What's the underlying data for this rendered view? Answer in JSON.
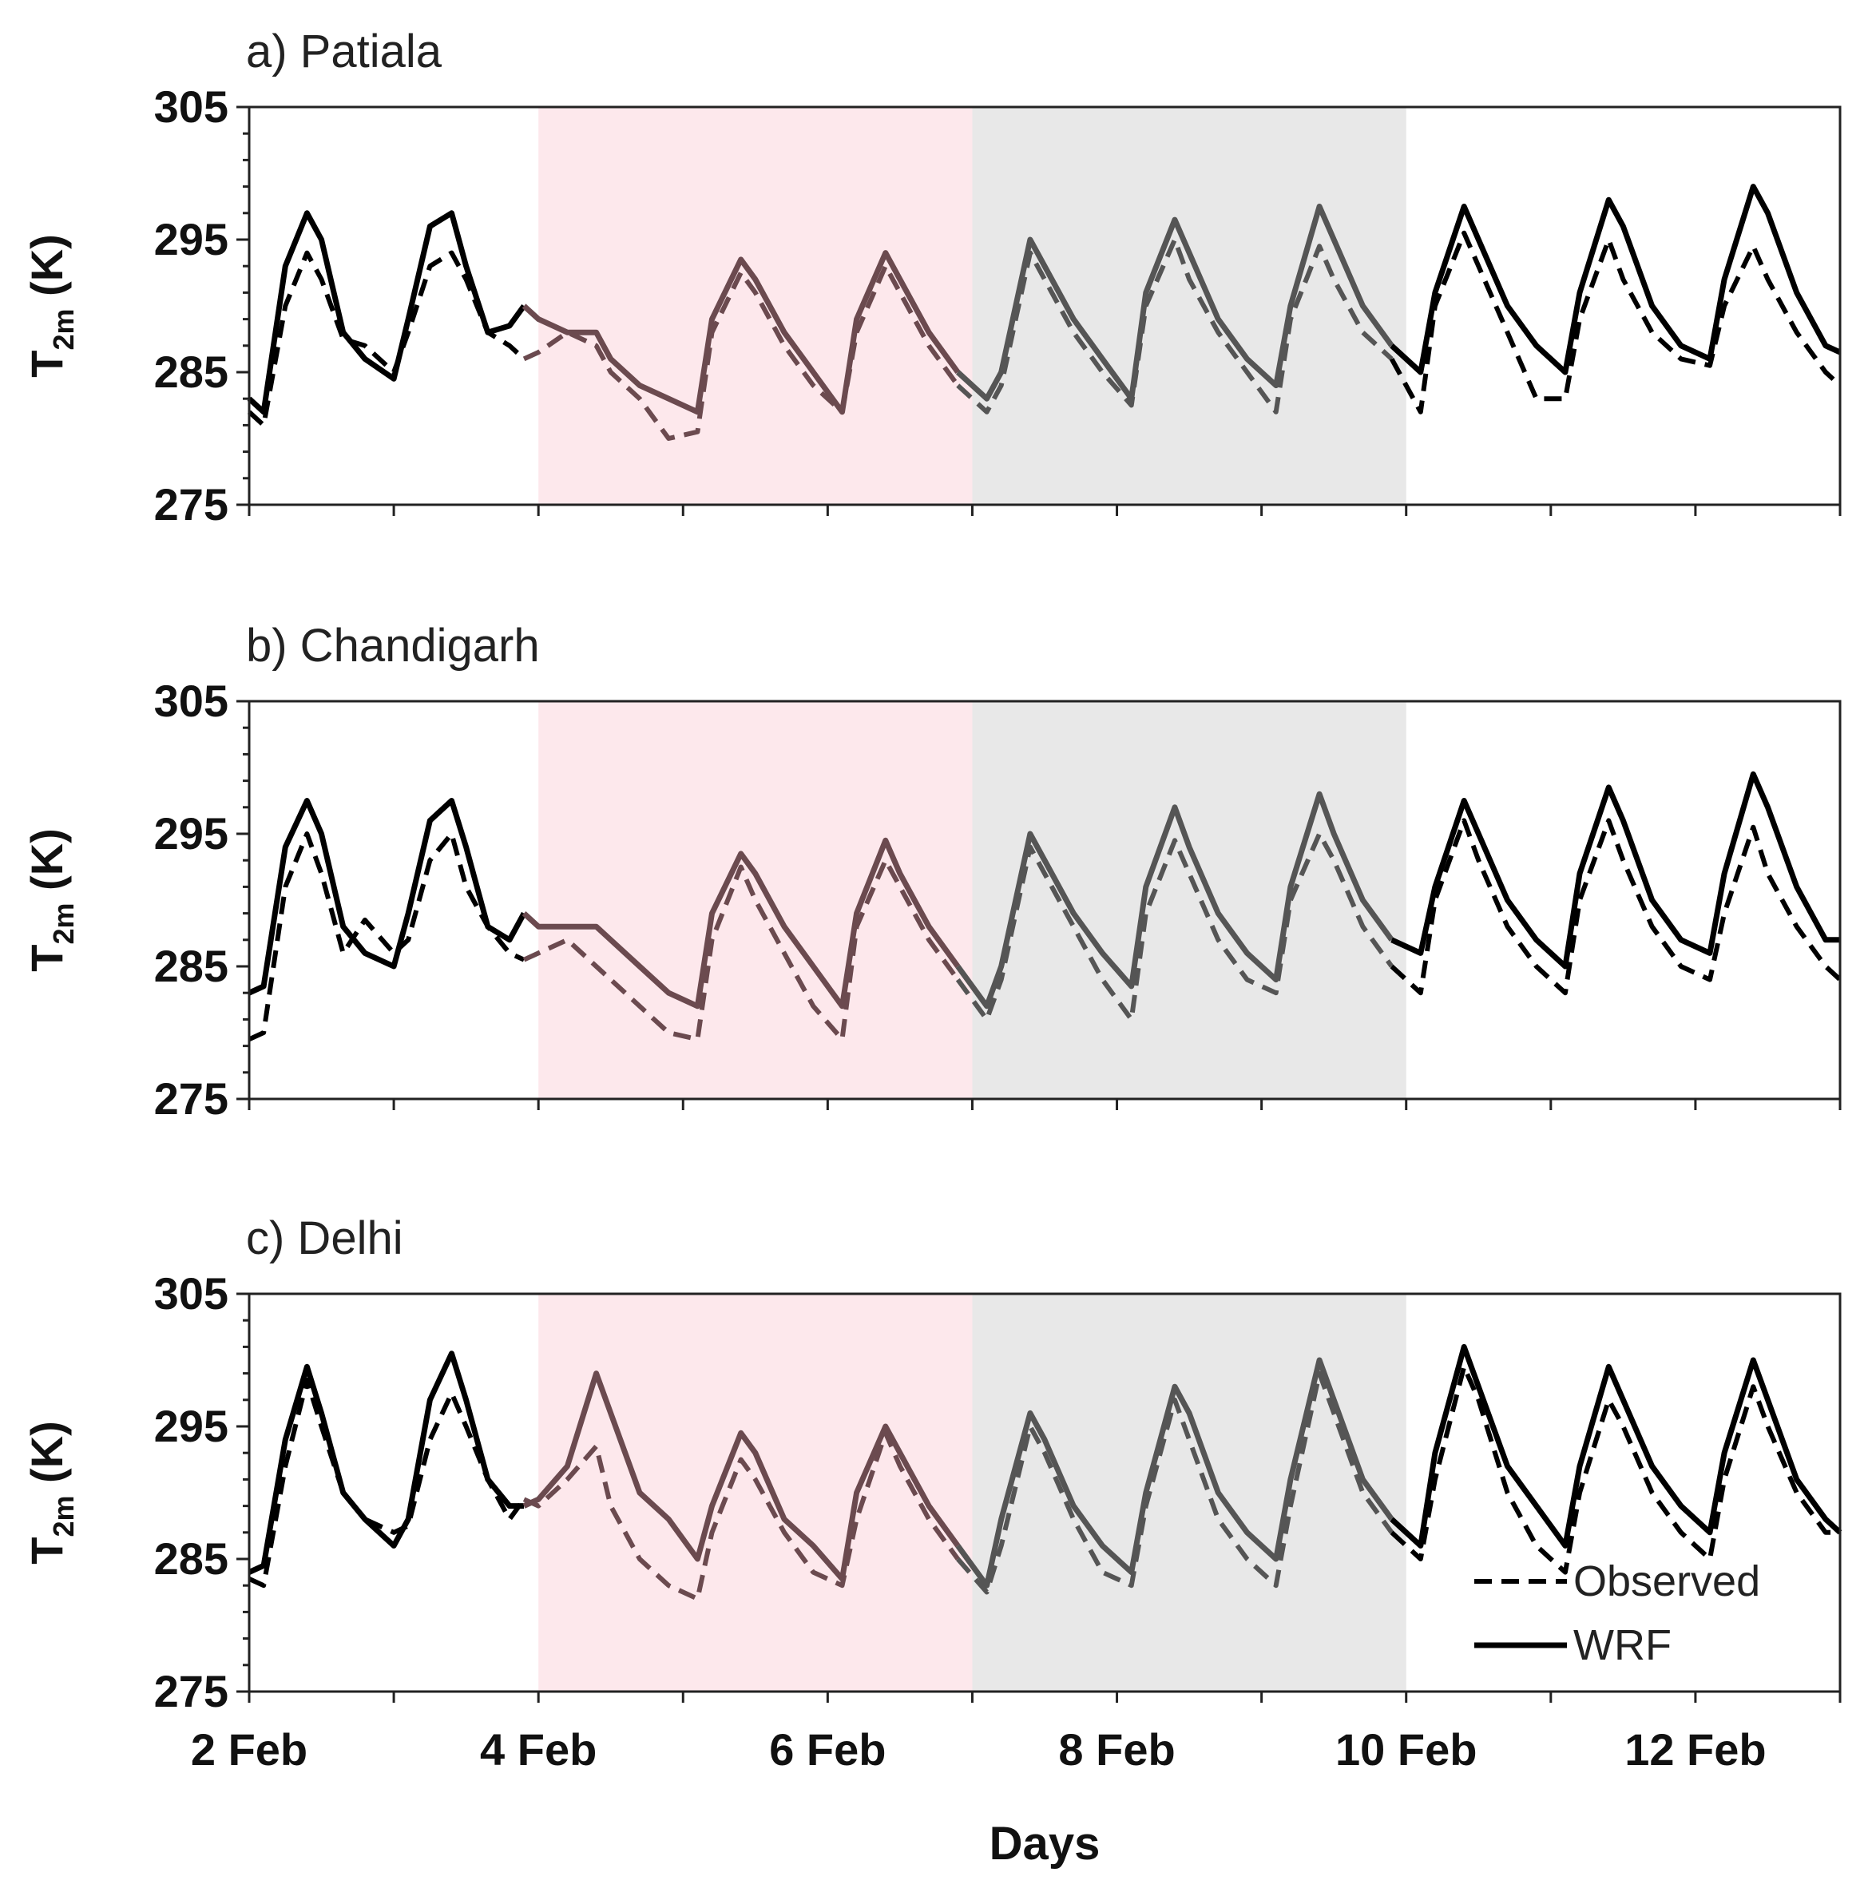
{
  "chart_data": {
    "type": "line",
    "xlabel": "Days",
    "x_tick_labels": [
      "2 Feb",
      "4 Feb",
      "6 Feb",
      "8 Feb",
      "10 Feb",
      "12 Feb"
    ],
    "x_tick_days": [
      2,
      4,
      6,
      8,
      10,
      12
    ],
    "xlim": [
      2,
      13
    ],
    "ylabel": "T",
    "ylabel_sub": "2m",
    "ylabel_unit": "(K)",
    "yticks": [
      305,
      295,
      285,
      275
    ],
    "ylim": [
      275,
      305
    ],
    "shaded_periods": [
      {
        "from": 4,
        "to": 7,
        "color": "#fde8ec"
      },
      {
        "from": 7,
        "to": 10,
        "color": "#e8e8e8"
      }
    ],
    "line_colors": {
      "clear": "#000000",
      "pink_period": "#6b4a4f",
      "grey_period": "#555555"
    },
    "legend": {
      "position": "bottom-right",
      "entries": [
        {
          "label": "Observed",
          "style": "dashed"
        },
        {
          "label": "WRF",
          "style": "solid"
        }
      ]
    },
    "panels": [
      {
        "title": "a) Patiala",
        "series": [
          {
            "name": "WRF",
            "style": "solid",
            "x": [
              2.0,
              2.1,
              2.25,
              2.4,
              2.5,
              2.65,
              2.8,
              3.0,
              3.1,
              3.25,
              3.4,
              3.5,
              3.65,
              3.8,
              3.9,
              4.0,
              4.2,
              4.4,
              4.5,
              4.7,
              4.9,
              5.1,
              5.2,
              5.4,
              5.5,
              5.7,
              5.9,
              6.1,
              6.2,
              6.4,
              6.5,
              6.7,
              6.9,
              7.1,
              7.2,
              7.4,
              7.5,
              7.7,
              7.9,
              8.1,
              8.2,
              8.4,
              8.5,
              8.7,
              8.9,
              9.1,
              9.2,
              9.4,
              9.5,
              9.7,
              9.9,
              10.1,
              10.2,
              10.4,
              10.5,
              10.7,
              10.9,
              11.1,
              11.2,
              11.4,
              11.5,
              11.7,
              11.9,
              12.1,
              12.2,
              12.4,
              12.5,
              12.7,
              12.9,
              13.0
            ],
            "y": [
              283,
              282,
              293,
              297,
              295,
              288,
              286,
              284.5,
              289,
              296,
              297,
              293,
              288,
              288.5,
              290,
              289,
              288,
              288,
              286,
              284,
              283,
              282,
              289,
              293.5,
              292,
              288,
              285,
              282,
              289,
              294,
              292,
              288,
              285,
              283,
              285,
              295,
              293,
              289,
              286,
              283,
              291,
              296.5,
              294,
              289,
              286,
              284,
              290,
              297.5,
              295,
              290,
              287,
              285,
              291,
              297.5,
              295,
              290,
              287,
              285,
              291,
              298,
              296,
              290,
              287,
              286,
              292,
              299,
              297,
              291,
              287,
              286.5
            ]
          },
          {
            "name": "Observed",
            "style": "dashed",
            "x": [
              2.0,
              2.1,
              2.25,
              2.4,
              2.5,
              2.65,
              2.8,
              3.0,
              3.1,
              3.25,
              3.4,
              3.5,
              3.65,
              3.8,
              3.9,
              4.0,
              4.2,
              4.4,
              4.5,
              4.7,
              4.9,
              5.1,
              5.2,
              5.4,
              5.5,
              5.7,
              5.9,
              6.1,
              6.2,
              6.4,
              6.5,
              6.7,
              6.9,
              7.1,
              7.2,
              7.4,
              7.5,
              7.7,
              7.9,
              8.1,
              8.2,
              8.4,
              8.5,
              8.7,
              8.9,
              9.1,
              9.2,
              9.4,
              9.5,
              9.7,
              9.9,
              10.1,
              10.2,
              10.4,
              10.5,
              10.7,
              10.9,
              11.1,
              11.2,
              11.4,
              11.5,
              11.7,
              11.9,
              12.1,
              12.2,
              12.4,
              12.5,
              12.7,
              12.9,
              13.0
            ],
            "y": [
              282,
              281,
              290,
              294,
              292,
              287.5,
              287,
              285,
              288,
              293,
              294,
              292,
              288,
              287,
              286,
              286.5,
              288,
              287,
              285,
              283,
              280,
              280.5,
              288,
              292.5,
              291,
              287,
              284,
              282,
              288,
              293,
              291,
              287,
              284,
              282,
              284,
              294,
              292,
              288,
              285,
              282.5,
              290,
              295,
              292,
              288,
              285,
              282,
              289,
              294.5,
              292,
              288,
              286,
              282,
              290,
              295.5,
              293,
              288,
              283,
              283,
              289,
              295,
              292,
              288,
              286,
              285.5,
              290,
              294.5,
              292,
              288,
              285,
              284
            ]
          }
        ]
      },
      {
        "title": "b) Chandigarh",
        "series": [
          {
            "name": "WRF",
            "style": "solid",
            "x": [
              2.0,
              2.1,
              2.25,
              2.4,
              2.5,
              2.65,
              2.8,
              3.0,
              3.1,
              3.25,
              3.4,
              3.5,
              3.65,
              3.8,
              3.9,
              4.0,
              4.2,
              4.4,
              4.5,
              4.7,
              4.9,
              5.1,
              5.2,
              5.4,
              5.5,
              5.7,
              5.9,
              6.1,
              6.2,
              6.4,
              6.5,
              6.7,
              6.9,
              7.1,
              7.2,
              7.4,
              7.5,
              7.7,
              7.9,
              8.1,
              8.2,
              8.4,
              8.5,
              8.7,
              8.9,
              9.1,
              9.2,
              9.4,
              9.5,
              9.7,
              9.9,
              10.1,
              10.2,
              10.4,
              10.5,
              10.7,
              10.9,
              11.1,
              11.2,
              11.4,
              11.5,
              11.7,
              11.9,
              12.1,
              12.2,
              12.4,
              12.5,
              12.7,
              12.9,
              13.0
            ],
            "y": [
              283,
              283.5,
              294,
              297.5,
              295,
              288,
              286,
              285,
              289,
              296,
              297.5,
              294,
              288,
              287,
              289,
              288,
              288,
              288,
              287,
              285,
              283,
              282,
              289,
              293.5,
              292,
              288,
              285,
              282,
              289,
              294.5,
              292,
              288,
              285,
              282,
              285,
              295,
              293,
              289,
              286,
              283.5,
              291,
              297,
              294,
              289,
              286,
              284,
              291,
              298,
              295,
              290,
              287,
              286,
              291,
              297.5,
              295,
              290,
              287,
              285,
              292,
              298.5,
              296,
              290,
              287,
              286,
              292,
              299.5,
              297,
              291,
              287,
              287
            ]
          },
          {
            "name": "Observed",
            "style": "dashed",
            "x": [
              2.0,
              2.1,
              2.25,
              2.4,
              2.5,
              2.65,
              2.8,
              3.0,
              3.1,
              3.25,
              3.4,
              3.5,
              3.65,
              3.8,
              3.9,
              4.0,
              4.2,
              4.4,
              4.5,
              4.7,
              4.9,
              5.1,
              5.2,
              5.4,
              5.5,
              5.7,
              5.9,
              6.1,
              6.2,
              6.4,
              6.5,
              6.7,
              6.9,
              7.1,
              7.2,
              7.4,
              7.5,
              7.7,
              7.9,
              8.1,
              8.2,
              8.4,
              8.5,
              8.7,
              8.9,
              9.1,
              9.2,
              9.4,
              9.5,
              9.7,
              9.9,
              10.1,
              10.2,
              10.4,
              10.5,
              10.7,
              10.9,
              11.1,
              11.2,
              11.4,
              11.5,
              11.7,
              11.9,
              12.1,
              12.2,
              12.4,
              12.5,
              12.7,
              12.9,
              13.0
            ],
            "y": [
              279.5,
              280,
              291,
              295,
              292,
              286,
              288.5,
              286,
              287,
              293,
              295,
              291,
              288,
              286,
              285.5,
              286,
              287,
              285,
              284,
              282,
              280,
              279.5,
              287,
              292.5,
              290,
              286,
              282,
              279.5,
              288,
              293,
              291,
              287,
              284,
              281,
              284,
              294,
              292,
              288,
              284,
              281,
              289,
              294.5,
              292,
              287,
              284,
              283,
              290,
              295,
              293,
              288,
              285,
              283,
              290,
              296,
              293,
              288,
              285,
              283,
              290,
              296,
              293,
              288,
              285,
              284,
              289,
              295.5,
              292,
              288,
              285,
              284
            ]
          }
        ]
      },
      {
        "title": "c) Delhi",
        "series": [
          {
            "name": "WRF",
            "style": "solid",
            "x": [
              2.0,
              2.1,
              2.25,
              2.4,
              2.5,
              2.65,
              2.8,
              3.0,
              3.1,
              3.25,
              3.4,
              3.5,
              3.65,
              3.8,
              3.9,
              4.0,
              4.2,
              4.4,
              4.5,
              4.7,
              4.9,
              5.1,
              5.2,
              5.4,
              5.5,
              5.7,
              5.9,
              6.1,
              6.2,
              6.4,
              6.5,
              6.7,
              6.9,
              7.1,
              7.2,
              7.4,
              7.5,
              7.7,
              7.9,
              8.1,
              8.2,
              8.4,
              8.5,
              8.7,
              8.9,
              9.1,
              9.2,
              9.4,
              9.5,
              9.7,
              9.9,
              10.1,
              10.2,
              10.4,
              10.5,
              10.7,
              10.9,
              11.1,
              11.2,
              11.4,
              11.5,
              11.7,
              11.9,
              12.1,
              12.2,
              12.4,
              12.5,
              12.7,
              12.9,
              13.0
            ],
            "y": [
              284,
              284.5,
              294,
              299.5,
              296,
              290,
              288,
              286,
              288,
              297,
              300.5,
              297,
              291,
              289,
              289,
              289.5,
              292,
              299,
              296,
              290,
              288,
              285,
              289,
              294.5,
              293,
              288,
              286,
              283.5,
              290,
              295,
              293,
              289,
              286,
              283,
              288,
              296,
              294,
              289,
              286,
              284,
              290,
              298,
              296,
              290,
              287,
              285,
              291,
              300,
              297,
              291,
              288,
              286,
              293,
              301,
              298,
              292,
              289,
              286,
              292,
              299.5,
              297,
              292,
              289,
              287,
              293,
              300,
              297,
              291,
              288,
              287
            ]
          },
          {
            "name": "Observed",
            "style": "dashed",
            "x": [
              2.0,
              2.1,
              2.25,
              2.4,
              2.5,
              2.65,
              2.8,
              3.0,
              3.1,
              3.25,
              3.4,
              3.5,
              3.65,
              3.8,
              3.9,
              4.0,
              4.2,
              4.4,
              4.5,
              4.7,
              4.9,
              5.1,
              5.2,
              5.4,
              5.5,
              5.7,
              5.9,
              6.1,
              6.2,
              6.4,
              6.5,
              6.7,
              6.9,
              7.1,
              7.2,
              7.4,
              7.5,
              7.7,
              7.9,
              8.1,
              8.2,
              8.4,
              8.5,
              8.7,
              8.9,
              9.1,
              9.2,
              9.4,
              9.5,
              9.7,
              9.9,
              10.1,
              10.2,
              10.4,
              10.5,
              10.7,
              10.9,
              11.1,
              11.2,
              11.4,
              11.5,
              11.7,
              11.9,
              12.1,
              12.2,
              12.4,
              12.5,
              12.7,
              12.9,
              13.0
            ],
            "y": [
              283.5,
              283,
              292,
              298.5,
              295,
              290,
              288,
              287,
              287.5,
              294,
              297.5,
              295,
              291,
              288,
              289.5,
              289,
              291,
              293.5,
              289,
              285,
              283,
              282,
              287,
              292.5,
              291,
              287,
              284,
              283,
              288,
              294.5,
              292,
              288,
              285,
              282.5,
              286,
              295,
              293,
              288,
              284,
              283,
              289,
              297,
              294,
              288,
              285,
              283,
              289,
              299,
              296,
              290,
              287,
              285,
              291,
              299.5,
              297,
              290,
              286,
              284,
              290,
              297,
              295,
              290,
              287,
              285,
              291,
              298,
              295,
              290,
              287,
              287
            ]
          }
        ]
      }
    ]
  }
}
